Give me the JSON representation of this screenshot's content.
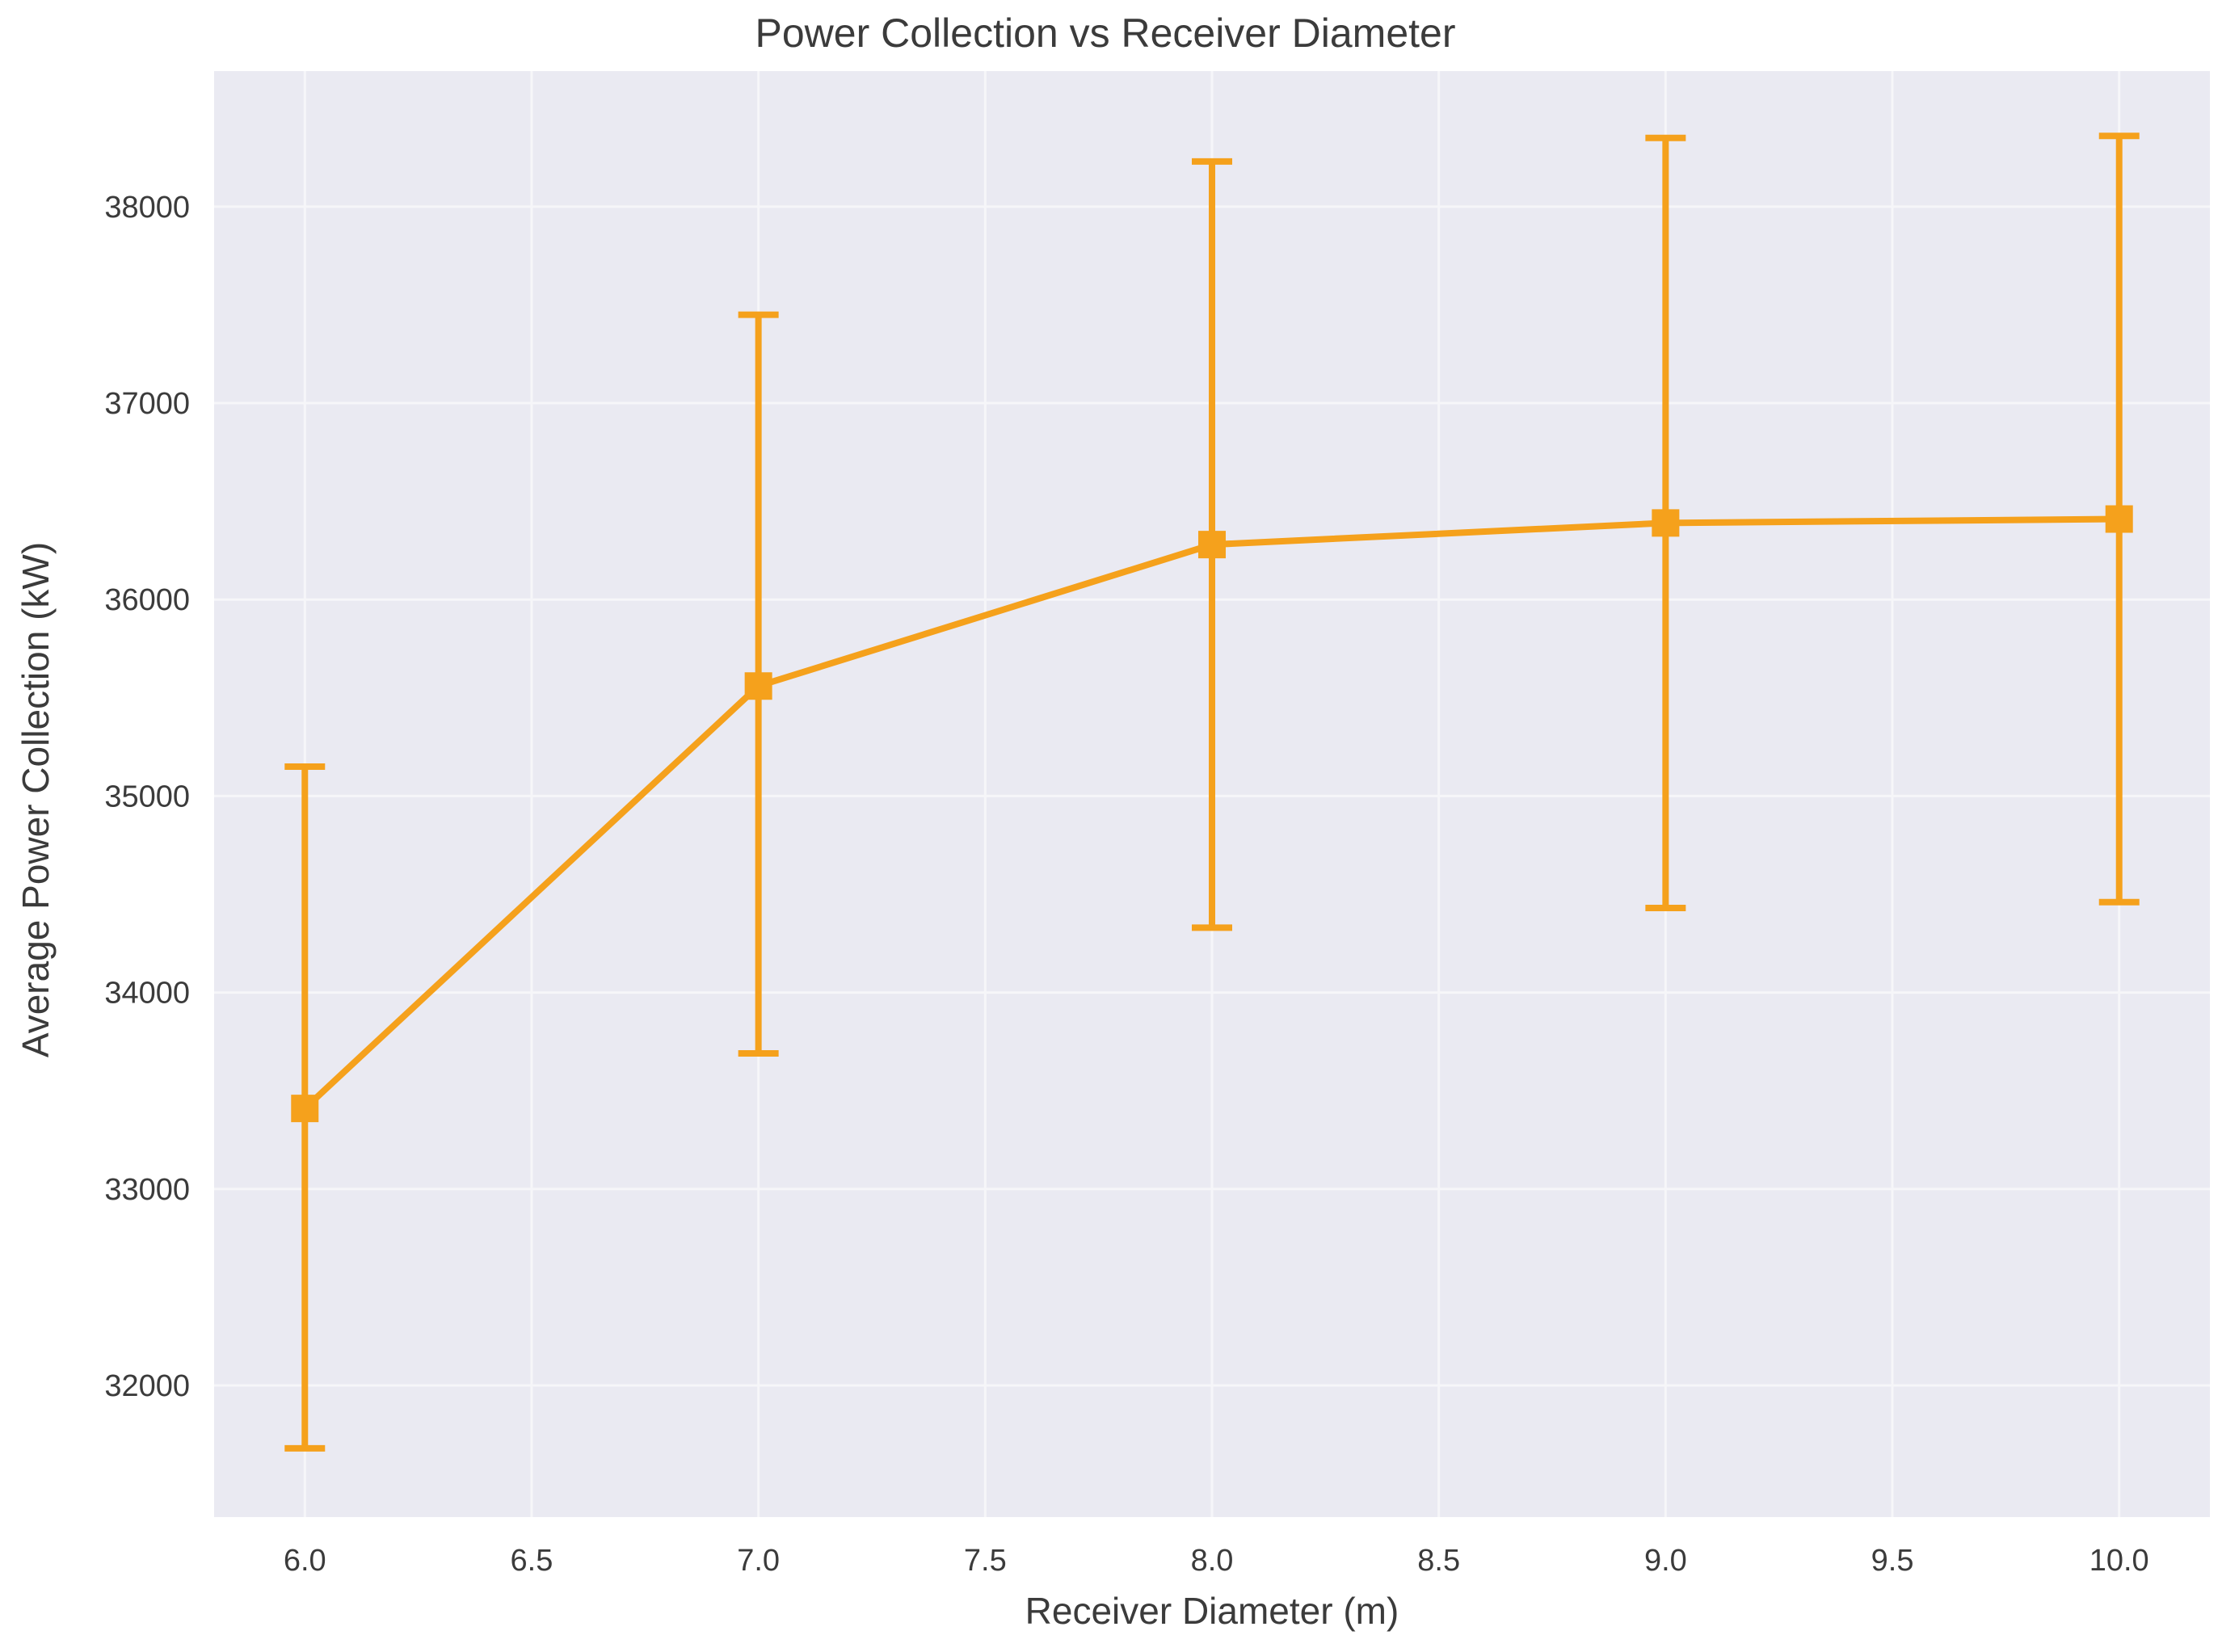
{
  "chart_data": {
    "type": "line",
    "title": "Power Collection vs Receiver Diameter",
    "xlabel": "Receiver Diameter (m)",
    "ylabel": "Average Power Collection (kW)",
    "xlim": [
      5.8,
      10.2
    ],
    "ylim": [
      31330,
      38690
    ],
    "x_ticks": [
      6.0,
      6.5,
      7.0,
      7.5,
      8.0,
      8.5,
      9.0,
      9.5,
      10.0
    ],
    "x_tick_labels": [
      "6.0",
      "6.5",
      "7.0",
      "7.5",
      "8.0",
      "8.5",
      "9.0",
      "9.5",
      "10.0"
    ],
    "y_ticks": [
      32000,
      33000,
      34000,
      35000,
      36000,
      37000,
      38000
    ],
    "y_tick_labels": [
      "32000",
      "33000",
      "34000",
      "35000",
      "36000",
      "37000",
      "38000"
    ],
    "grid": true,
    "legend": "none",
    "series": [
      {
        "marker": "square",
        "color": "#f5a11c",
        "x": [
          6.0,
          7.0,
          8.0,
          9.0,
          10.0
        ],
        "y": [
          33410,
          35560,
          36280,
          36390,
          36410
        ],
        "y_err_lower": [
          31680,
          33690,
          34330,
          34430,
          34460
        ],
        "y_err_upper": [
          35150,
          37450,
          38230,
          38350,
          38360
        ]
      }
    ],
    "colors": {
      "plot_background": "#eaeaf2",
      "grid": "#f6f6f9",
      "series": "#f5a11c",
      "text": "#3b3b3b"
    }
  }
}
